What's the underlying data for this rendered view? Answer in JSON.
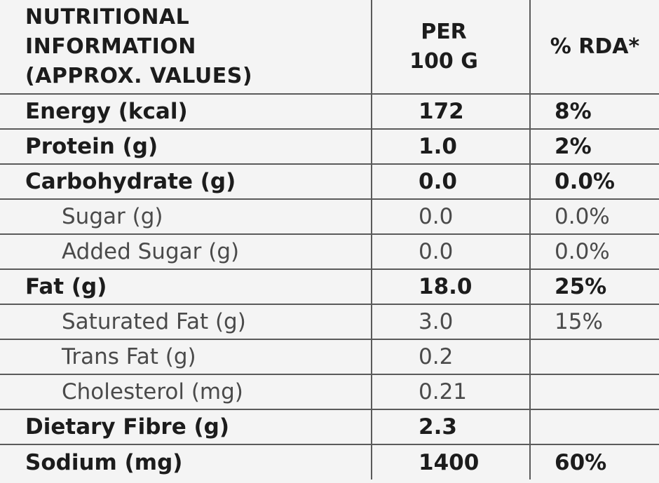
{
  "header": {
    "name_line1": "NUTRITIONAL",
    "name_line2": "INFORMATION",
    "name_line3": "(APPROX. VALUES)",
    "per_line1": "PER",
    "per_line2": "100 G",
    "rda": "% RDA*"
  },
  "rows": [
    {
      "name": "Energy (kcal)",
      "per_100g": "172",
      "rda": "8%",
      "sub": false
    },
    {
      "name": "Protein (g)",
      "per_100g": "1.0",
      "rda": "2%",
      "sub": false
    },
    {
      "name": "Carbohydrate (g)",
      "per_100g": "0.0",
      "rda": "0.0%",
      "sub": false
    },
    {
      "name": "Sugar (g)",
      "per_100g": "0.0",
      "rda": "0.0%",
      "sub": true
    },
    {
      "name": "Added Sugar (g)",
      "per_100g": "0.0",
      "rda": "0.0%",
      "sub": true
    },
    {
      "name": "Fat (g)",
      "per_100g": "18.0",
      "rda": "25%",
      "sub": false
    },
    {
      "name": "Saturated Fat (g)",
      "per_100g": "3.0",
      "rda": "15%",
      "sub": true
    },
    {
      "name": "Trans Fat (g)",
      "per_100g": "0.2",
      "rda": "",
      "sub": true
    },
    {
      "name": "Cholesterol (mg)",
      "per_100g": "0.21",
      "rda": "",
      "sub": true
    },
    {
      "name": "Dietary Fibre (g)",
      "per_100g": "2.3",
      "rda": "",
      "sub": false
    },
    {
      "name": "Sodium (mg)",
      "per_100g": "1400",
      "rda": "60%",
      "sub": false
    }
  ]
}
